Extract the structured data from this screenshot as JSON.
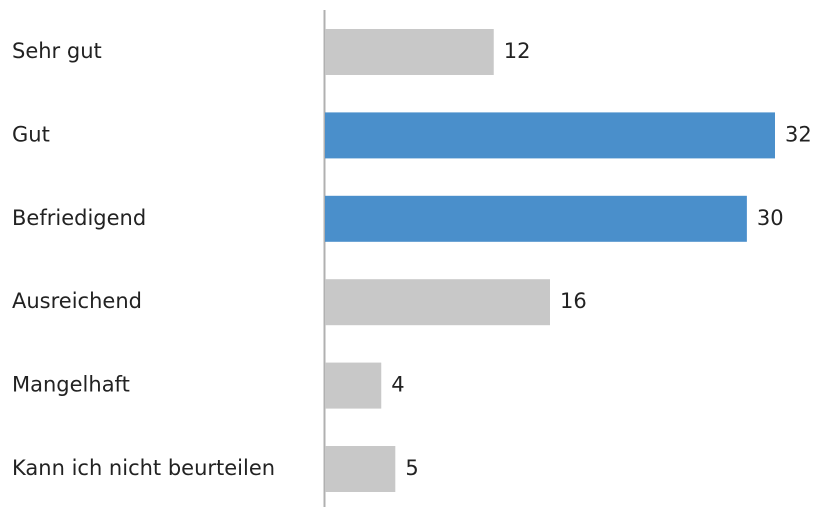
{
  "chart_data": {
    "type": "hbar",
    "categories": [
      "Sehr gut",
      "Gut",
      "Befriedigend",
      "Ausreichend",
      "Mangelhaft",
      "Kann ich nicht beurteilen"
    ],
    "values": [
      12,
      32,
      30,
      16,
      4,
      5
    ],
    "colors": [
      "#c8c8c8",
      "#4a8fcb",
      "#4a8fcb",
      "#c8c8c8",
      "#c8c8c8",
      "#c8c8c8"
    ],
    "xlim": [
      0,
      32
    ]
  }
}
